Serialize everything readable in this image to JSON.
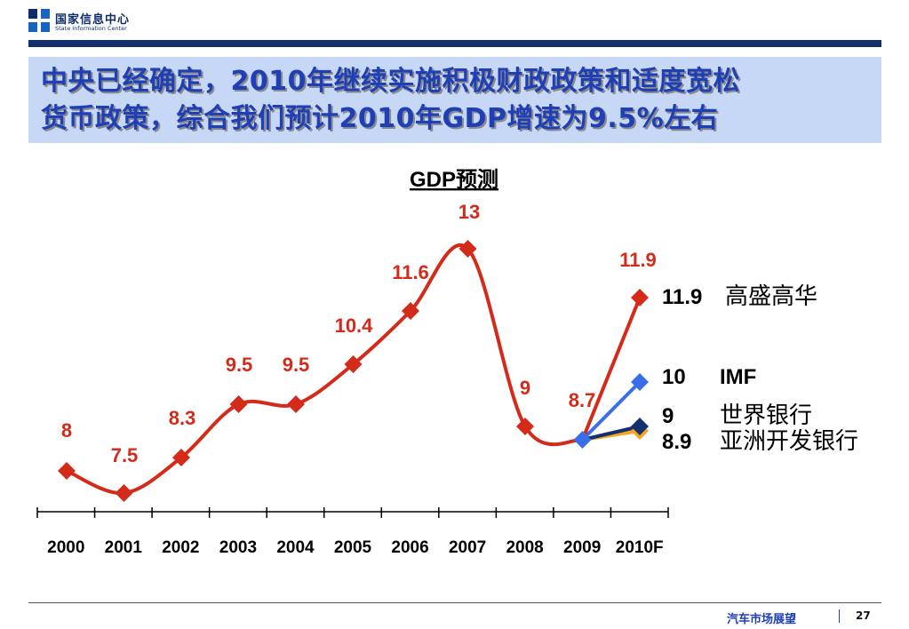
{
  "header": {
    "logo_cn": "国家信息中心",
    "logo_en": "State Information Center"
  },
  "title": {
    "line1": "中央已经确定，2010年继续实施积极财政政策和适度宽松",
    "line2": "货币政策，综合我们预计2010年GDP增速为9.5%左右"
  },
  "colors": {
    "main_series": "#d42a1a",
    "imf": "#3a6ee8",
    "world_bank": "#14306f",
    "adb": "#f5a61e",
    "title_text": "#1f3fb6",
    "title_bg": "#c7d7f6"
  },
  "chart_data": {
    "type": "line",
    "title": "GDP预测",
    "categories": [
      "2000",
      "2001",
      "2002",
      "2003",
      "2004",
      "2005",
      "2006",
      "2007",
      "2008",
      "2009",
      "2010F"
    ],
    "series": [
      {
        "values": [
          8,
          7.5,
          8.3,
          9.5,
          9.5,
          10.4,
          11.6,
          13,
          9,
          8.7,
          11.9
        ],
        "labels": [
          "8",
          "7.5",
          "8.3",
          "9.5",
          "9.5",
          "10.4",
          "11.6",
          "13",
          "9",
          "8.7",
          "11.9"
        ]
      }
    ],
    "forecasts": [
      {
        "value_label": "11.9",
        "name": "高盛高华",
        "value": 11.9
      },
      {
        "value_label": "10",
        "name": "IMF",
        "value": 10
      },
      {
        "value_label": "9",
        "name": "世界银行",
        "value": 9
      },
      {
        "value_label": "8.9",
        "name": "亚洲开发银行",
        "value": 8.9
      }
    ],
    "ylim": [
      7,
      13.6
    ]
  },
  "footer": {
    "section": "汽车市场展望",
    "page": "27"
  }
}
